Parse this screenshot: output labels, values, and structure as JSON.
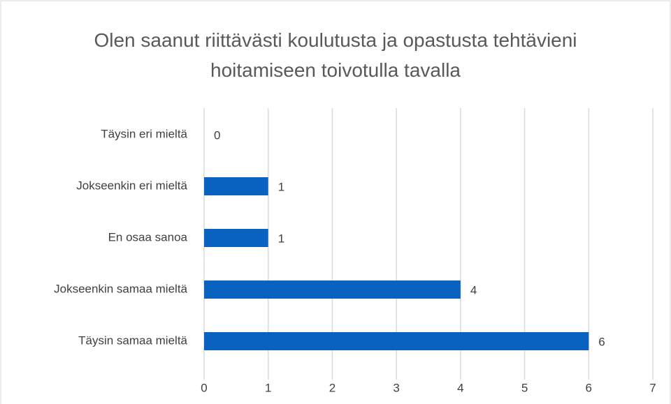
{
  "chart_data": {
    "type": "barh",
    "title": "Olen saanut riittävästi koulutusta ja opastusta tehtävieni hoitamiseen toivotulla tavalla",
    "categories": [
      "Täysin eri mieltä",
      "Jokseenkin eri mieltä",
      "En osaa sanoa",
      "Jokseenkin samaa mieltä",
      "Täysin samaa mieltä"
    ],
    "values": [
      0,
      1,
      1,
      4,
      6
    ],
    "color": "#0a62c0",
    "xlim": [
      0,
      7
    ],
    "xticks": [
      0,
      1,
      2,
      3,
      4,
      5,
      6,
      7
    ],
    "grid": true
  }
}
